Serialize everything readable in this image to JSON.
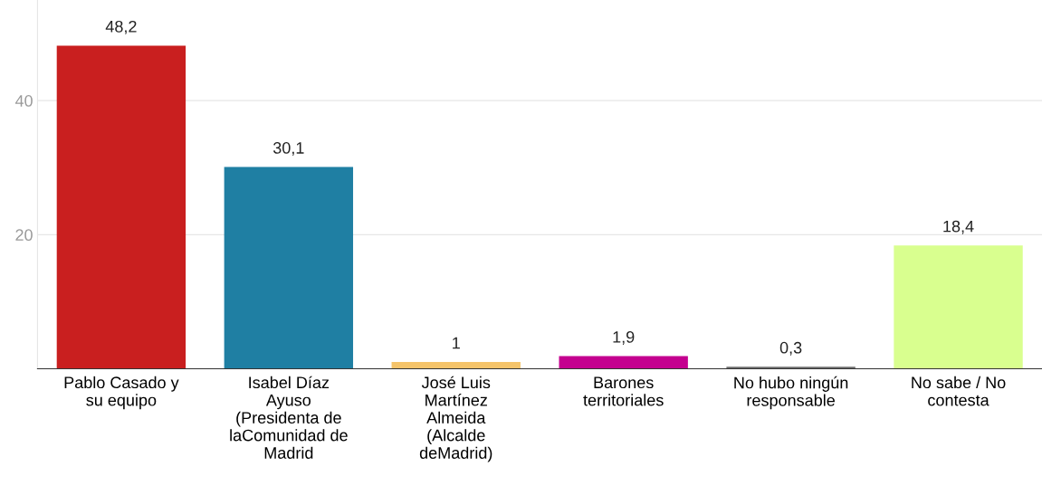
{
  "chart_data": {
    "type": "bar",
    "categories": [
      "Pablo Casado y\nsu equipo",
      "Isabel Díaz\nAyuso\n(Presidenta de\nlaComunidad de\nMadrid",
      "José Luis\nMartínez\nAlmeida\n(Alcalde\ndeMadrid)",
      "Barones\nterritoriales",
      "No hubo ningún\nresponsable",
      "No sabe / No\ncontesta"
    ],
    "values": [
      48.2,
      30.1,
      1,
      1.9,
      0.3,
      18.4
    ],
    "colors": [
      "#c91f1f",
      "#1f7fa3",
      "#f5c46a",
      "#c4008f",
      "#6e6e6e",
      "#d9ff8f"
    ],
    "value_labels": [
      "48,2",
      "30,1",
      "1",
      "1,9",
      "0,3",
      "18,4"
    ],
    "ylim": [
      0,
      55
    ],
    "yticks": [
      20,
      40
    ],
    "grid": "y"
  }
}
